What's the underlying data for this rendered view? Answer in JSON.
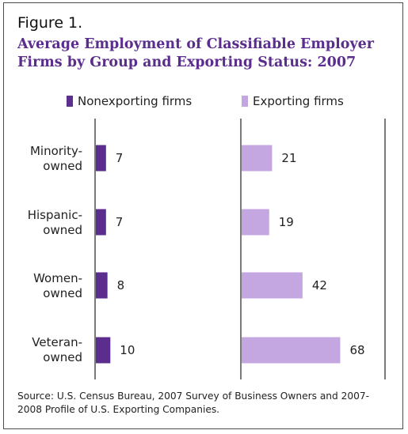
{
  "figure_label": "Figure 1.",
  "title": "Average Employment of Classifiable Employer Firms by Group and Exporting Status: 2007",
  "source": "Source: U.S. Census Bureau, 2007 Survey of Business Owners and 2007-2008 Profile of U.S. Exporting Companies.",
  "colors": {
    "nonexporting": "#5b2d8c",
    "exporting": "#c4a6e0",
    "title": "#5b2d8c"
  },
  "chart_data": {
    "type": "bar",
    "orientation": "horizontal",
    "layout": "two-panel",
    "title": "Average Employment of Classifiable Employer Firms by Group and Exporting Status: 2007",
    "categories": [
      {
        "line1": "Minority-",
        "line2": "owned"
      },
      {
        "line1": "Hispanic-",
        "line2": "owned"
      },
      {
        "line1": "Women-",
        "line2": "owned"
      },
      {
        "line1": "Veteran-",
        "line2": "owned"
      }
    ],
    "series": [
      {
        "name": "Nonexporting firms",
        "values": [
          7,
          7,
          8,
          10
        ],
        "labels": [
          "7",
          "7",
          "8",
          "10"
        ]
      },
      {
        "name": "Exporting firms",
        "values": [
          21,
          19,
          42,
          68
        ],
        "labels": [
          "21",
          "19",
          "42",
          "68"
        ]
      }
    ],
    "legend": "top",
    "grid": false
  }
}
